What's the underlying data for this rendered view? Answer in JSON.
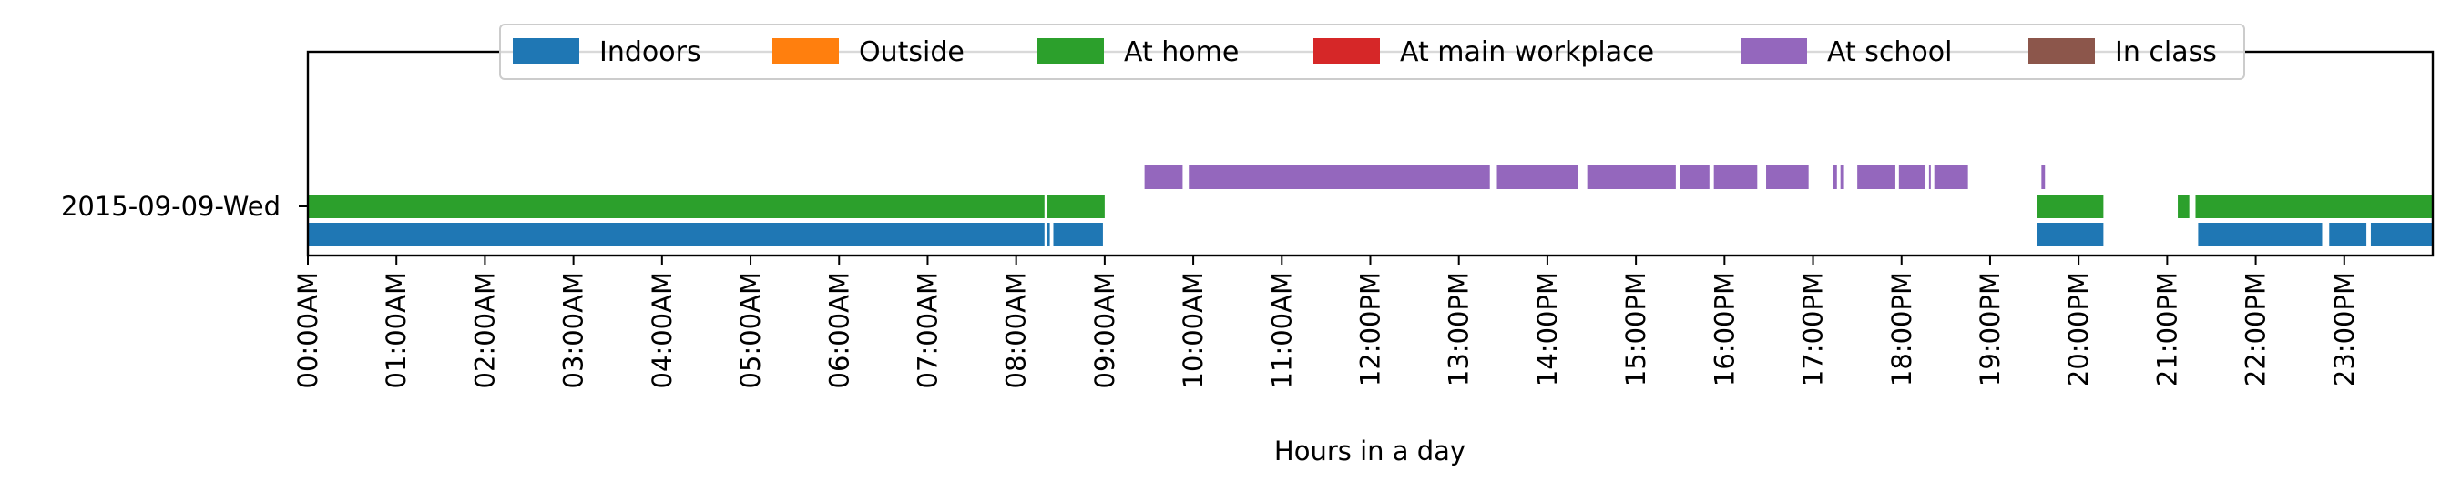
{
  "chart_data": {
    "type": "timeline",
    "xlabel": "Hours in a day",
    "xlim": [
      0,
      24
    ],
    "x_ticks": [
      "00:00AM",
      "01:00AM",
      "02:00AM",
      "03:00AM",
      "04:00AM",
      "05:00AM",
      "06:00AM",
      "07:00AM",
      "08:00AM",
      "09:00AM",
      "10:00AM",
      "11:00AM",
      "12:00PM",
      "13:00PM",
      "14:00PM",
      "15:00PM",
      "16:00PM",
      "17:00PM",
      "18:00PM",
      "19:00PM",
      "20:00PM",
      "21:00PM",
      "22:00PM",
      "23:00PM"
    ],
    "y_categories": [
      "2015-09-09-Wed"
    ],
    "legend_position": "top-center",
    "series": [
      {
        "name": "Indoors",
        "color": "#1f77b4",
        "lane": 0,
        "intervals": [
          [
            0,
            8.32
          ],
          [
            8.35,
            8.38
          ],
          [
            8.42,
            8.98
          ],
          [
            19.53,
            20.28
          ],
          [
            21.35,
            22.75
          ],
          [
            22.83,
            23.25
          ],
          [
            23.3,
            24
          ]
        ]
      },
      {
        "name": "Outside",
        "color": "#ff7f0e",
        "lane": 1,
        "intervals": []
      },
      {
        "name": "At home",
        "color": "#2ca02c",
        "lane": 1,
        "intervals": [
          [
            0,
            8.32
          ],
          [
            8.35,
            9.0
          ],
          [
            19.53,
            20.28
          ],
          [
            21.12,
            21.25
          ],
          [
            21.32,
            24
          ]
        ]
      },
      {
        "name": "At main workplace",
        "color": "#d62728",
        "lane": 2,
        "intervals": []
      },
      {
        "name": "At school",
        "color": "#9467bd",
        "lane": 2,
        "intervals": [
          [
            9.45,
            9.88
          ],
          [
            9.95,
            13.35
          ],
          [
            13.43,
            14.35
          ],
          [
            14.45,
            15.45
          ],
          [
            15.5,
            15.83
          ],
          [
            15.88,
            16.37
          ],
          [
            16.47,
            16.95
          ],
          [
            17.23,
            17.27
          ],
          [
            17.31,
            17.35
          ],
          [
            17.5,
            17.93
          ],
          [
            17.97,
            18.27
          ],
          [
            18.31,
            18.33
          ],
          [
            18.37,
            18.75
          ],
          [
            19.58,
            19.62
          ]
        ]
      },
      {
        "name": "In class",
        "color": "#8c564b",
        "lane": 3,
        "intervals": []
      }
    ]
  }
}
